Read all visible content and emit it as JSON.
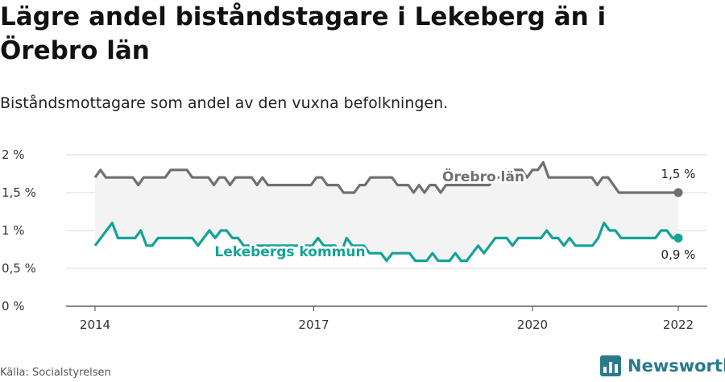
{
  "title": "Lägre andel biståndstagare i Lekeberg än i Örebro län",
  "subtitle": "Biståndsmottagare som andel av den vuxna befolkningen.",
  "source": "Källa: Socialstyrelsen",
  "brand": "Newsworthy",
  "colors": {
    "orebro": "#707070",
    "lekeberg": "#14a396",
    "band": "#f3f3f3",
    "grid": "#d9d9d9",
    "brand": "#2a7a8c"
  },
  "chart_data": {
    "type": "line",
    "title": "Lägre andel biståndstagare i Lekeberg än i Örebro län",
    "subtitle": "Biståndsmottagare som andel av den vuxna befolkningen.",
    "ylim": [
      0,
      2
    ],
    "y_ticks": [
      "0 %",
      "0,5 %",
      "1 %",
      "1,5 %",
      "2 %"
    ],
    "x_ticks": [
      "2014",
      "2017",
      "2020",
      "2022"
    ],
    "x_tick_values": [
      2014,
      2017,
      2020,
      2022
    ],
    "x_range": [
      2014,
      2022
    ],
    "grid": true,
    "series": [
      {
        "name": "Örebro län",
        "end_label": "1,5 %",
        "values": [
          1.7,
          1.8,
          1.7,
          1.7,
          1.7,
          1.7,
          1.7,
          1.7,
          1.6,
          1.7,
          1.7,
          1.7,
          1.7,
          1.7,
          1.8,
          1.8,
          1.8,
          1.8,
          1.7,
          1.7,
          1.7,
          1.7,
          1.6,
          1.7,
          1.7,
          1.6,
          1.7,
          1.7,
          1.7,
          1.7,
          1.6,
          1.7,
          1.6,
          1.6,
          1.6,
          1.6,
          1.6,
          1.6,
          1.6,
          1.6,
          1.6,
          1.7,
          1.7,
          1.6,
          1.6,
          1.6,
          1.5,
          1.5,
          1.5,
          1.6,
          1.6,
          1.7,
          1.7,
          1.7,
          1.7,
          1.7,
          1.6,
          1.6,
          1.6,
          1.5,
          1.6,
          1.5,
          1.6,
          1.6,
          1.5,
          1.6,
          1.6,
          1.6,
          1.6,
          1.6,
          1.6,
          1.6,
          1.6,
          1.6,
          1.7,
          1.7,
          1.8,
          1.8,
          1.8,
          1.8,
          1.7,
          1.8,
          1.8,
          1.9,
          1.7,
          1.7,
          1.7,
          1.7,
          1.7,
          1.7,
          1.7,
          1.7,
          1.7,
          1.6,
          1.7,
          1.7,
          1.6,
          1.5,
          1.5,
          1.5,
          1.5,
          1.5,
          1.5,
          1.5,
          1.5,
          1.5,
          1.5,
          1.5,
          1.5
        ]
      },
      {
        "name": "Lekebergs kommun",
        "end_label": "0,9 %",
        "values": [
          0.8,
          0.9,
          1.0,
          1.1,
          0.9,
          0.9,
          0.9,
          0.9,
          1.0,
          0.8,
          0.8,
          0.9,
          0.9,
          0.9,
          0.9,
          0.9,
          0.9,
          0.9,
          0.8,
          0.9,
          1.0,
          0.9,
          1.0,
          1.0,
          0.9,
          0.9,
          0.8,
          0.8,
          0.8,
          0.8,
          0.8,
          0.8,
          0.8,
          0.8,
          0.8,
          0.8,
          0.8,
          0.8,
          0.8,
          0.9,
          0.8,
          0.8,
          0.8,
          0.7,
          0.9,
          0.8,
          0.8,
          0.8,
          0.7,
          0.7,
          0.7,
          0.6,
          0.7,
          0.7,
          0.7,
          0.7,
          0.6,
          0.6,
          0.6,
          0.7,
          0.6,
          0.6,
          0.6,
          0.7,
          0.6,
          0.6,
          0.7,
          0.8,
          0.7,
          0.8,
          0.9,
          0.9,
          0.9,
          0.8,
          0.9,
          0.9,
          0.9,
          0.9,
          0.9,
          1.0,
          0.9,
          0.9,
          0.8,
          0.9,
          0.8,
          0.8,
          0.8,
          0.8,
          0.9,
          1.1,
          1.0,
          1.0,
          0.9,
          0.9,
          0.9,
          0.9,
          0.9,
          0.9,
          0.9,
          1.0,
          1.0,
          0.9,
          0.9
        ]
      }
    ]
  }
}
